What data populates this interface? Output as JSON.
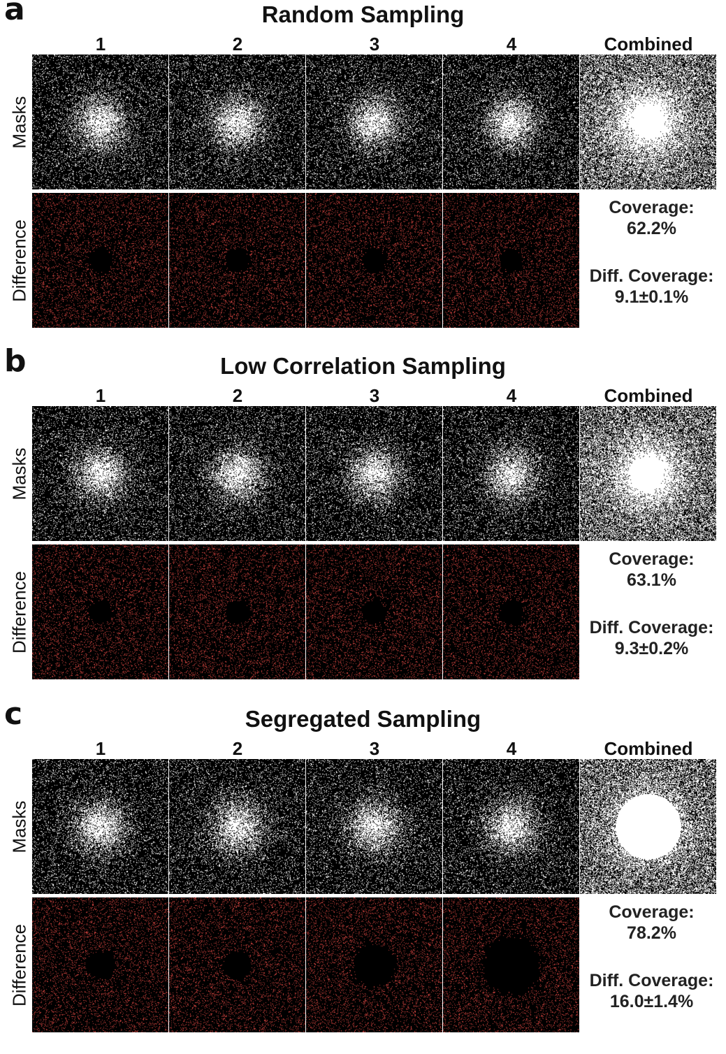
{
  "column_labels": [
    "1",
    "2",
    "3",
    "4",
    "Combined"
  ],
  "row_labels": {
    "masks": "Masks",
    "difference": "Difference"
  },
  "panels": [
    {
      "letter": "a",
      "title": "Random Sampling",
      "coverage_label": "Coverage:",
      "coverage_value": "62.2%",
      "diff_label": "Diff. Coverage:",
      "diff_value": "9.1±0.1%",
      "hole_radii": [
        0.11,
        0.11,
        0.11,
        0.11
      ],
      "combined_core": 0.0
    },
    {
      "letter": "b",
      "title": "Low Correlation Sampling",
      "coverage_label": "Coverage:",
      "coverage_value": "63.1%",
      "diff_label": "Diff. Coverage:",
      "diff_value": "9.3±0.2%",
      "hole_radii": [
        0.11,
        0.11,
        0.11,
        0.11
      ],
      "combined_core": 0.0
    },
    {
      "letter": "c",
      "title": "Segregated Sampling",
      "coverage_label": "Coverage:",
      "coverage_value": "78.2%",
      "diff_label": "Diff. Coverage:",
      "diff_value": "16.0±1.4%",
      "hole_radii": [
        0.13,
        0.13,
        0.2,
        0.27
      ],
      "combined_core": 0.55
    }
  ],
  "colors": {
    "mask_dot": "#ffffff",
    "diff_dot": "#c8403c",
    "background": "#000000"
  }
}
